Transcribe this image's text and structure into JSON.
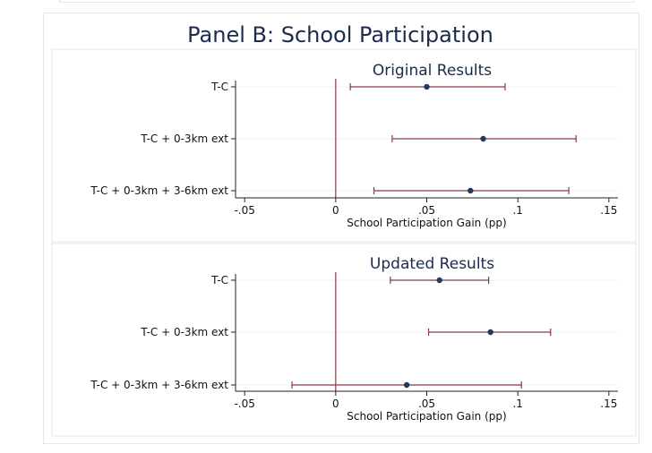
{
  "title": "Panel B: School Participation",
  "colors": {
    "ci": "#8b3a3f",
    "point": "#233a5e",
    "zero_line": "#8b3a3f",
    "grid": "#eef1f5",
    "title": "#1a2b4c"
  },
  "chart_data": [
    {
      "type": "scatter",
      "subtitle": "Original Results",
      "xlabel": "School Participation Gain (pp)",
      "xlim": [
        -0.055,
        0.155
      ],
      "xticks": [
        {
          "value": -0.05,
          "label": "-.05"
        },
        {
          "value": 0,
          "label": "0"
        },
        {
          "value": 0.05,
          "label": ".05"
        },
        {
          "value": 0.1,
          "label": ".1"
        },
        {
          "value": 0.15,
          "label": ".15"
        }
      ],
      "reference_line": 0,
      "rows": [
        {
          "label": "T-C",
          "estimate": 0.05,
          "lower": 0.008,
          "upper": 0.093
        },
        {
          "label": "T-C + 0-3km ext",
          "estimate": 0.081,
          "lower": 0.031,
          "upper": 0.132
        },
        {
          "label": "T-C + 0-3km + 3-6km ext",
          "estimate": 0.074,
          "lower": 0.021,
          "upper": 0.128
        }
      ]
    },
    {
      "type": "scatter",
      "subtitle": "Updated Results",
      "xlabel": "School Participation Gain (pp)",
      "xlim": [
        -0.055,
        0.155
      ],
      "xticks": [
        {
          "value": -0.05,
          "label": "-.05"
        },
        {
          "value": 0,
          "label": "0"
        },
        {
          "value": 0.05,
          "label": ".05"
        },
        {
          "value": 0.1,
          "label": ".1"
        },
        {
          "value": 0.15,
          "label": ".15"
        }
      ],
      "reference_line": 0,
      "rows": [
        {
          "label": "T-C",
          "estimate": 0.057,
          "lower": 0.03,
          "upper": 0.084
        },
        {
          "label": "T-C + 0-3km ext",
          "estimate": 0.085,
          "lower": 0.051,
          "upper": 0.118
        },
        {
          "label": "T-C + 0-3km + 3-6km ext",
          "estimate": 0.039,
          "lower": -0.024,
          "upper": 0.102
        }
      ]
    }
  ]
}
